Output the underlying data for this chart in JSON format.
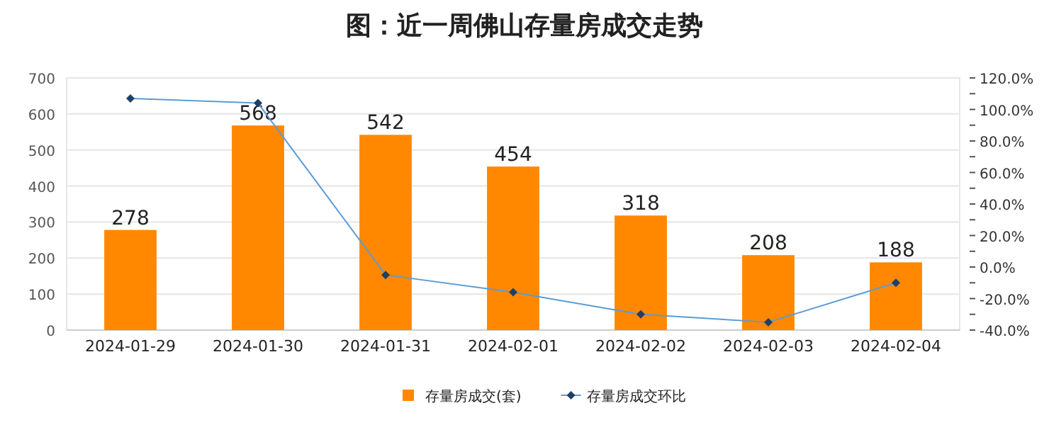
{
  "chart_data": {
    "type": "bar",
    "title": "图：近一周佛山存量房成交走势",
    "categories": [
      "2024-01-29",
      "2024-01-30",
      "2024-01-31",
      "2024-02-01",
      "2024-02-02",
      "2024-02-03",
      "2024-02-04"
    ],
    "series": [
      {
        "name": "存量房成交(套)",
        "color": "#ff8800",
        "values": [
          278,
          568,
          542,
          454,
          318,
          208,
          188
        ],
        "data_labels": true
      },
      {
        "name": "存量房成交环比",
        "type": "line",
        "axis": "y2",
        "color": "#5b9bd5",
        "marker": "diamond",
        "values": [
          107,
          104,
          -5,
          -16,
          -30,
          -35,
          -10
        ]
      }
    ],
    "ylim": [
      0,
      700
    ],
    "yticks": [
      0,
      100,
      200,
      300,
      400,
      500,
      600,
      700
    ],
    "y2lim": [
      -40,
      120
    ],
    "y2ticks": [
      {
        "value": -40,
        "label": "-40.0%"
      },
      {
        "value": -30,
        "label": null
      },
      {
        "value": -20,
        "label": "-20.0%"
      },
      {
        "value": -10,
        "label": null
      },
      {
        "value": 0,
        "label": "0.0%"
      },
      {
        "value": 10,
        "label": null
      },
      {
        "value": 20,
        "label": "20.0%"
      },
      {
        "value": 30,
        "label": null
      },
      {
        "value": 40,
        "label": "40.0%"
      },
      {
        "value": 50,
        "label": null
      },
      {
        "value": 60,
        "label": "60.0%"
      },
      {
        "value": 70,
        "label": null
      },
      {
        "value": 80,
        "label": "80.0%"
      },
      {
        "value": 90,
        "label": null
      },
      {
        "value": 100,
        "label": "100.0%"
      },
      {
        "value": 110,
        "label": null
      },
      {
        "value": 120,
        "label": "120.0%"
      }
    ],
    "grid": "y",
    "legend": "bottom"
  }
}
